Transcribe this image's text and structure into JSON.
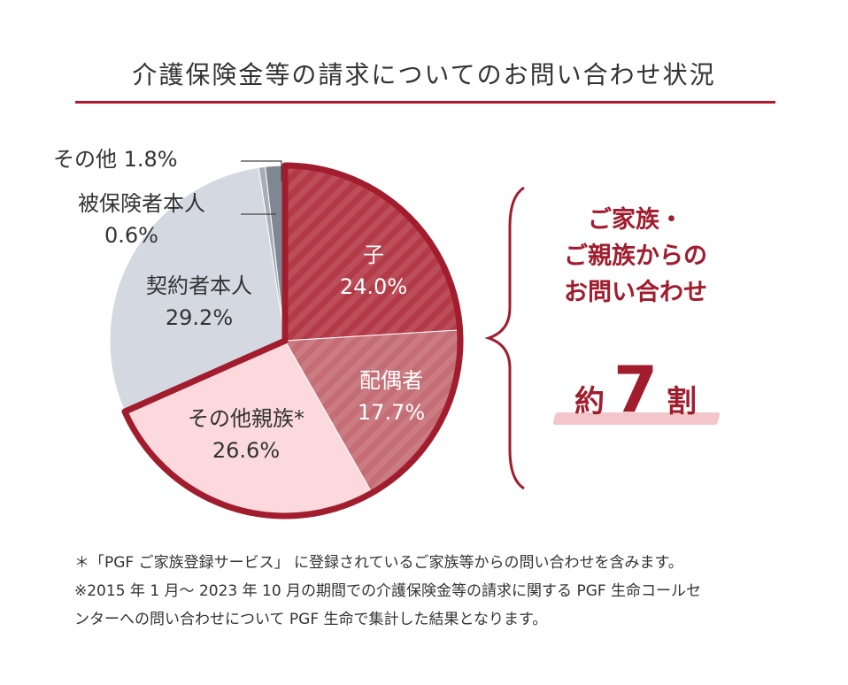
{
  "title": "介護保険金等の請求についてのお問い合わせ状況",
  "colors": {
    "accent": "#a11d2e",
    "ko": "#b33a47",
    "haigusha": "#c46d74",
    "sonota_shinzoku": "#fbd9dd",
    "keiyakusha": "#d4d8e1",
    "hihokensha": "#a8aeb9",
    "sonota": "#7f8792"
  },
  "chart_data": {
    "type": "pie",
    "slices": [
      {
        "label": "子",
        "value": 24.0,
        "display": "24.0%"
      },
      {
        "label": "配偶者",
        "value": 17.7,
        "display": "17.7%"
      },
      {
        "label": "その他親族*",
        "value": 26.6,
        "display": "26.6%"
      },
      {
        "label": "契約者本人",
        "value": 29.2,
        "display": "29.2%"
      },
      {
        "label": "被保険者本人",
        "value": 0.6,
        "display": "0.6%"
      },
      {
        "label": "その他",
        "value": 1.8,
        "display": "1.8%"
      }
    ],
    "highlighted_group": [
      "子",
      "配偶者",
      "その他親族*"
    ]
  },
  "labels": {
    "other": "その他 1.8%",
    "insured_name": "被保険者本人",
    "insured_pct": "0.6%",
    "policyholder_name": "契約者本人",
    "policyholder_pct": "29.2%",
    "child_name": "子",
    "child_pct": "24.0%",
    "spouse_name": "配偶者",
    "spouse_pct": "17.7%",
    "relatives_name": "その他親族*",
    "relatives_pct": "26.6%"
  },
  "callout": {
    "line1": "ご家族・",
    "line2": "ご親族からの",
    "line3": "お問い合わせ",
    "approx_pre": "約",
    "approx_num": "7",
    "approx_post": "割"
  },
  "notes": [
    "＊「PGF ご家族登録サービス」 に登録されているご家族等からの問い合わせを含みます。",
    "※2015 年 1 月～ 2023 年 10 月の期間での介護保険金等の請求に関する PGF 生命コールセ",
    "ンターへの問い合わせについて PGF 生命で集計した結果となります。"
  ]
}
